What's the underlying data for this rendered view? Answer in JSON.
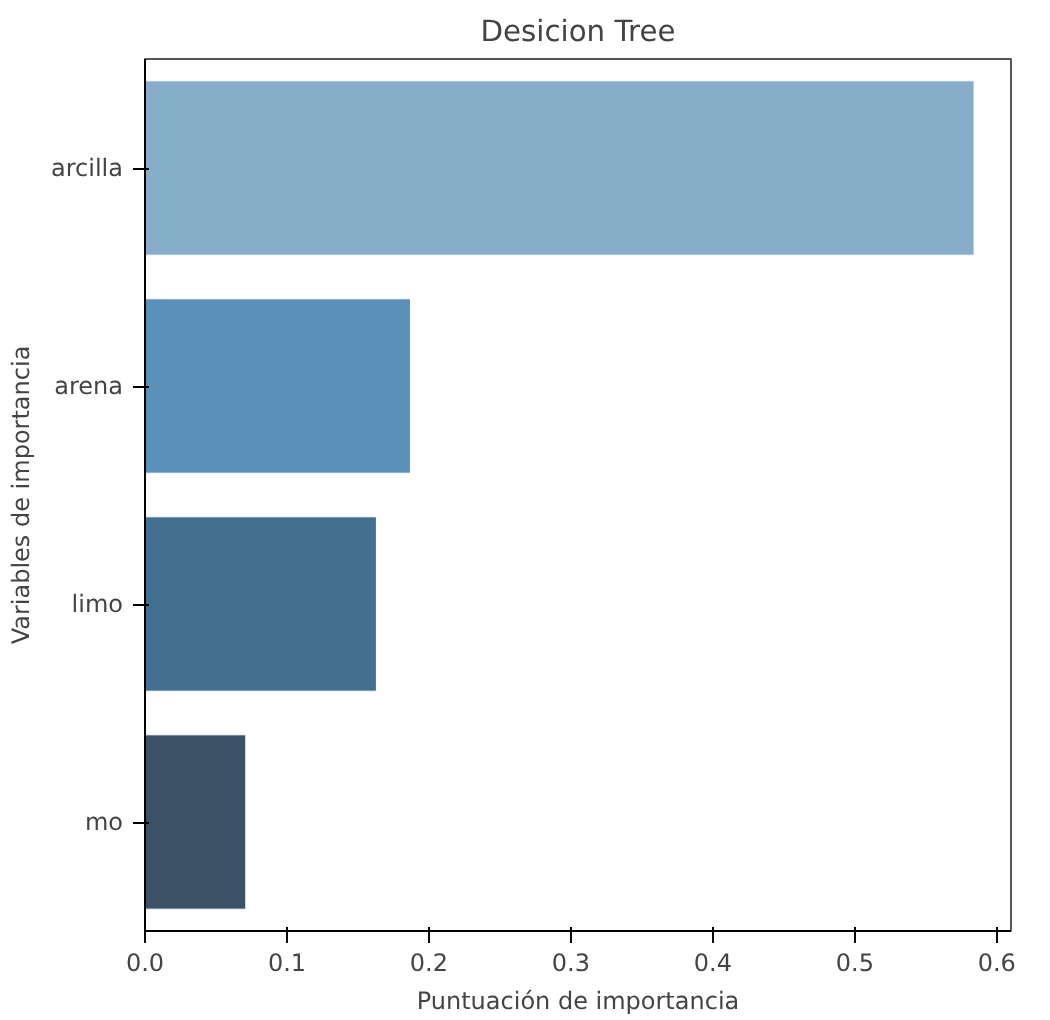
{
  "chart_data": {
    "type": "bar",
    "orientation": "horizontal",
    "title": "Desicion Tree",
    "xlabel": "Puntuación de importancia",
    "ylabel": "Variables de importancia",
    "categories": [
      "arcilla",
      "arena",
      "limo",
      "mo"
    ],
    "values": [
      0.584,
      0.187,
      0.163,
      0.071
    ],
    "colors": [
      "#86aec9",
      "#5b91b8",
      "#44708f",
      "#3c5165"
    ],
    "xlim": [
      0,
      0.61
    ],
    "xticks": [
      {
        "value": 0,
        "label": "0.0"
      },
      0.1,
      0.2,
      0.3,
      0.4,
      0.5,
      0.6
    ],
    "grid": false
  }
}
